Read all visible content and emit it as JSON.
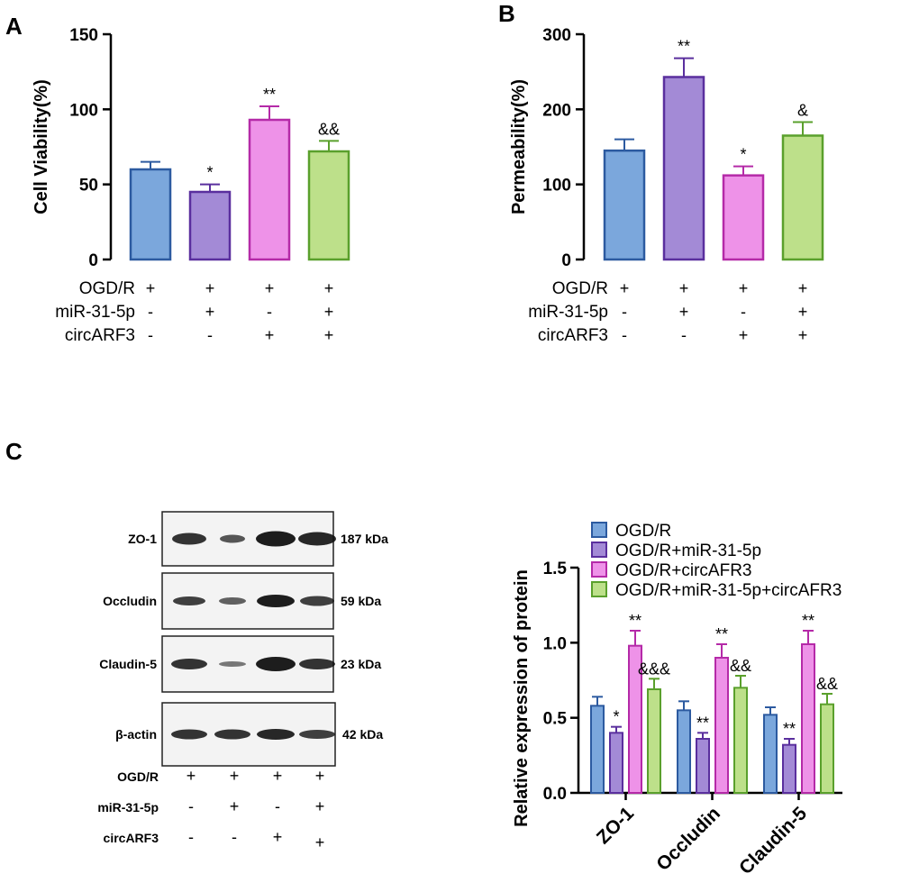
{
  "panels": {
    "A": {
      "letter": "A",
      "chart_data": {
        "type": "bar",
        "ylabel": "Cell Viability(%)",
        "ylim": [
          0,
          150
        ],
        "yticks": [
          "0",
          "50",
          "100",
          "150"
        ],
        "values": [
          60,
          45,
          93,
          72
        ],
        "errors": [
          5,
          5,
          9,
          7
        ],
        "significance": [
          "",
          "*",
          "**",
          "&&"
        ]
      }
    },
    "B": {
      "letter": "B",
      "chart_data": {
        "type": "bar",
        "ylabel": "Permeability(%)",
        "ylim": [
          0,
          300
        ],
        "yticks": [
          "0",
          "100",
          "200",
          "300"
        ],
        "values": [
          145,
          243,
          112,
          165
        ],
        "errors": [
          15,
          25,
          12,
          18
        ],
        "significance": [
          "",
          "**",
          "*",
          "&"
        ]
      }
    },
    "C": {
      "letter": "C",
      "chart_data": {
        "type": "bar",
        "ylabel": "Relative  expression of protein",
        "ylim": [
          0,
          1.5
        ],
        "yticks": [
          "0.0",
          "0.5",
          "1.0",
          "1.5"
        ],
        "categories": [
          "ZO-1",
          "Occludin",
          "Claudin-5"
        ],
        "series": [
          {
            "name": "OGD/R",
            "values": [
              0.58,
              0.55,
              0.52
            ],
            "errors": [
              0.06,
              0.06,
              0.05
            ],
            "significance": [
              "",
              "",
              ""
            ]
          },
          {
            "name": "OGD/R+miR-31-5p",
            "values": [
              0.4,
              0.36,
              0.32
            ],
            "errors": [
              0.04,
              0.04,
              0.04
            ],
            "significance": [
              "*",
              "**",
              "**"
            ]
          },
          {
            "name": "OGD/R+circAFR3",
            "values": [
              0.98,
              0.9,
              0.99
            ],
            "errors": [
              0.1,
              0.09,
              0.09
            ],
            "significance": [
              "**",
              "**",
              "**"
            ]
          },
          {
            "name": "OGD/R+miR-31-5p+circAFR3",
            "values": [
              0.69,
              0.7,
              0.59
            ],
            "errors": [
              0.07,
              0.08,
              0.07
            ],
            "significance": [
              "&&&",
              "&&",
              "&&"
            ]
          }
        ]
      }
    }
  },
  "conditions": {
    "rows": [
      {
        "label": "OGD/R",
        "signs": [
          "+",
          "+",
          "+",
          "+"
        ]
      },
      {
        "label": "miR-31-5p",
        "signs": [
          "-",
          "+",
          "-",
          "+"
        ]
      },
      {
        "label": "circARF3",
        "signs": [
          "-",
          "-",
          "+",
          "+"
        ]
      }
    ]
  },
  "western_blot": {
    "bands": [
      {
        "label": "ZO-1",
        "kda": "187 kDa"
      },
      {
        "label": "Occludin",
        "kda": "59 kDa"
      },
      {
        "label": "Claudin-5",
        "kda": "23 kDa"
      },
      {
        "label": "β-actin",
        "kda": "42 kDa"
      }
    ],
    "conditions": [
      {
        "label": "OGD/R",
        "signs": [
          "+",
          "+",
          "+",
          "+"
        ]
      },
      {
        "label": "miR-31-5p",
        "signs": [
          "-",
          "+",
          "-",
          "+"
        ]
      },
      {
        "label": "circARF3",
        "signs": [
          "-",
          "-",
          "+",
          "+"
        ]
      }
    ]
  },
  "colors": {
    "fills": [
      "#7ba7dc",
      "#a38ad6",
      "#ee92e8",
      "#bde08a"
    ],
    "strokes": [
      "#2c5aa0",
      "#5a2f9e",
      "#b52aa8",
      "#5aa02c"
    ]
  }
}
